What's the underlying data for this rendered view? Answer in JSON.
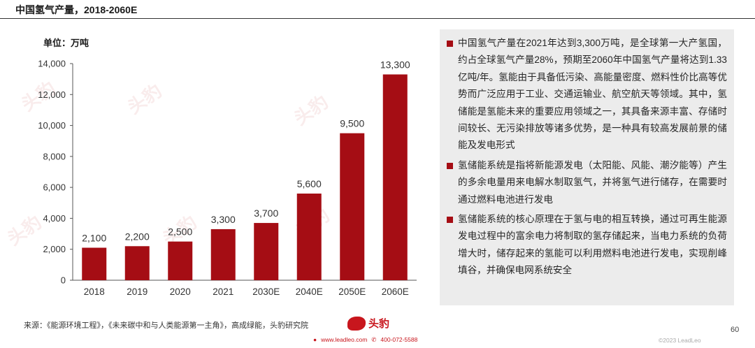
{
  "header": {
    "title": "中国氢气产量，2018-2060E"
  },
  "unit_label": "单位：万吨",
  "colors": {
    "bar": "#a50d14",
    "accent": "#c8161d",
    "panel_bg": "#ececec"
  },
  "chart_data": {
    "type": "bar",
    "categories": [
      "2018",
      "2019",
      "2020",
      "2021",
      "2030E",
      "2040E",
      "2050E",
      "2060E"
    ],
    "values": [
      2100,
      2200,
      2500,
      3300,
      3700,
      5600,
      9500,
      13300
    ],
    "value_labels": [
      "2,100",
      "2,200",
      "2,500",
      "3,300",
      "3,700",
      "5,600",
      "9,500",
      "13,300"
    ],
    "y_ticks": [
      "0",
      "2,000",
      "4,000",
      "6,000",
      "8,000",
      "10,000",
      "12,000",
      "14,000"
    ],
    "ylim": [
      0,
      14000
    ],
    "grid": false
  },
  "watermark": {
    "text": "头豹"
  },
  "panel": {
    "bullets": [
      "中国氢气产量在2021年达到3,300万吨，是全球第一大产氢国，约占全球氢气产量28%，预期至2060年中国氢气产量将达到1.33亿吨/年。氢能由于具备低污染、高能量密度、燃料性价比高等优势而广泛应用于工业、交通运输业、航空航天等领域。其中，氢储能是氢能未来的重要应用领域之一，其具备来源丰富、存储时间较长、无污染排放等诸多优势，是一种具有较高发展前景的储能及发电形式",
      "氢储能系统是指将新能源发电（太阳能、风能、潮汐能等）产生的多余电量用来电解水制取氢气，并将氢气进行储存，在需要时通过燃料电池进行发电",
      "氢储能系统的核心原理在于氢与电的相互转换，通过可再生能源发电过程中的富余电力将制取的氢存储起来，当电力系统的负荷增大时，储存起来的氢能可以利用燃料电池进行发电，实现削峰填谷，并确保电网系统安全"
    ]
  },
  "footer": {
    "source": "来源：《能源环境工程》，《未来碳中和与人类能源第一主角》，高成绿能，头豹研究院",
    "logo_text": "头豹",
    "website": "www.leadleo.com",
    "phone": "400-072-5588",
    "copyright": "©2023 LeadLeo",
    "page_number": "60"
  }
}
